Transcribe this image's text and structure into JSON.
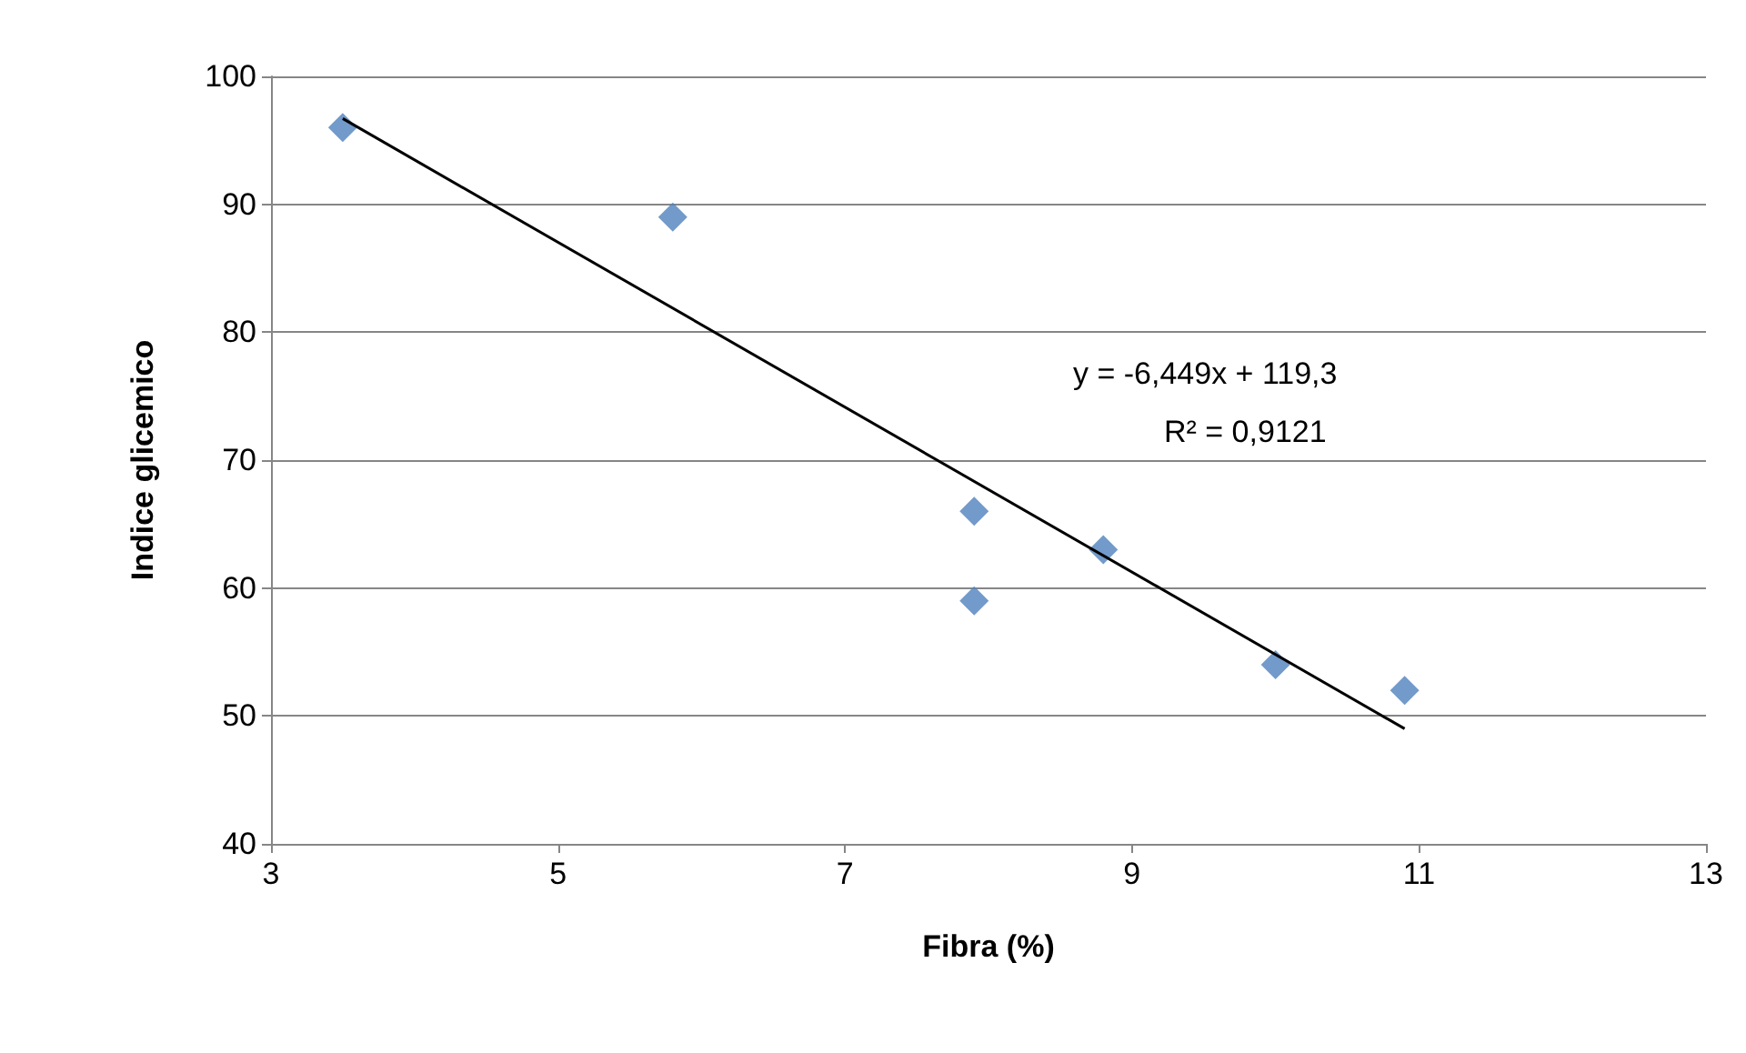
{
  "chart_data": {
    "type": "scatter",
    "xlabel": "Fibra (%)",
    "ylabel": "Indice glicemico",
    "series": [
      {
        "color": "#4f81bd",
        "marker": "diamond",
        "x": [
          3.5,
          5.8,
          7.9,
          7.9,
          8.8,
          10.0,
          10.9
        ],
        "values": [
          96,
          89,
          66,
          59,
          63,
          54,
          52
        ]
      },
      {
        "type": "line",
        "color": "#000000",
        "marker": "none",
        "x": [
          3.5,
          10.9
        ],
        "values": [
          96.7,
          49.0
        ]
      }
    ],
    "annotations": [
      "y = -6,449x + 119,3",
      "R² = 0,9121"
    ],
    "xlim": [
      3,
      13
    ],
    "xticks": [
      3,
      5,
      7,
      9,
      11,
      13
    ],
    "ylim": [
      40,
      100
    ],
    "yticks": [
      40,
      50,
      60,
      70,
      80,
      90,
      100
    ],
    "grid": "y"
  }
}
